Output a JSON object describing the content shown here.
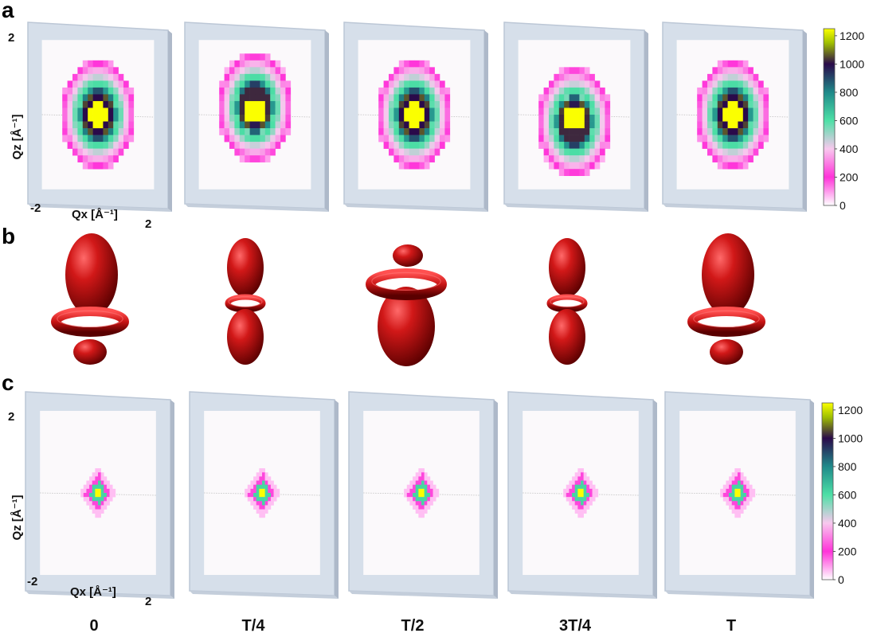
{
  "figure": {
    "panel_labels": [
      "a",
      "b",
      "c"
    ],
    "time_labels": [
      "0",
      "T/4",
      "T/2",
      "3T/4",
      "T"
    ],
    "colors": {
      "frame": "#d6dfea",
      "frame_edge": "#bcc7d6",
      "plot_bg": "#fbf9fb",
      "lobe": "#c81414",
      "lobe_dark": "#6e0000"
    }
  },
  "chart_data": [
    {
      "type": "heatmap",
      "panel": "a",
      "xlabel": "Qx  [Å⁻¹]",
      "ylabel": "Qz  [Å⁻¹]",
      "x_ticks": [
        "-2",
        "2"
      ],
      "y_ticks": [
        "2"
      ],
      "xlim": [
        -2,
        2
      ],
      "ylim": [
        -2,
        2
      ],
      "frames": [
        {
          "time": "0",
          "center_offset": [
            0,
            0
          ],
          "ring_radius": 0.7,
          "core": "yellow-center"
        },
        {
          "time": "T/4",
          "center_offset": [
            0,
            0.15
          ],
          "ring_radius": 0.75,
          "core": "yellow-lower-half"
        },
        {
          "time": "T/2",
          "center_offset": [
            0,
            0
          ],
          "ring_radius": 0.7,
          "core": "yellow-center"
        },
        {
          "time": "3T/4",
          "center_offset": [
            0,
            -0.15
          ],
          "ring_radius": 0.75,
          "core": "yellow-upper-half"
        },
        {
          "time": "T",
          "center_offset": [
            0,
            0
          ],
          "ring_radius": 0.7,
          "core": "yellow-center"
        }
      ],
      "colorbar": {
        "ticks": [
          "0",
          "200",
          "400",
          "600",
          "800",
          "1000",
          "1200"
        ],
        "range": [
          0,
          1250
        ],
        "colors": [
          "#ffffff",
          "#ff33d9",
          "#f7b8ef",
          "#4de0a6",
          "#1f8a8a",
          "#2a0a4a",
          "#fbff00"
        ]
      }
    },
    {
      "type": "other",
      "panel": "b",
      "description_shapes": [
        {
          "time": "0",
          "upper_lobe": "large",
          "ring": "lower",
          "lower_lobe": "small"
        },
        {
          "time": "T/4",
          "upper_lobe": "medium",
          "ring": "middle",
          "lower_lobe": "medium"
        },
        {
          "time": "T/2",
          "upper_lobe": "small",
          "ring": "upper",
          "lower_lobe": "large"
        },
        {
          "time": "3T/4",
          "upper_lobe": "medium",
          "ring": "middle",
          "lower_lobe": "medium"
        },
        {
          "time": "T",
          "upper_lobe": "large",
          "ring": "lower",
          "lower_lobe": "small"
        }
      ]
    },
    {
      "type": "heatmap",
      "panel": "c",
      "xlabel": "Qx  [Å⁻¹]",
      "ylabel": "Qz  [Å⁻¹]",
      "x_ticks": [
        "-2",
        "2"
      ],
      "y_ticks": [
        "2"
      ],
      "xlim": [
        -2,
        2
      ],
      "ylim": [
        -2,
        2
      ],
      "frames": [
        {
          "time": "0"
        },
        {
          "time": "T/4"
        },
        {
          "time": "T/2"
        },
        {
          "time": "3T/4"
        },
        {
          "time": "T"
        }
      ],
      "colorbar": {
        "ticks": [
          "0",
          "200",
          "400",
          "600",
          "800",
          "1000",
          "1200"
        ],
        "range": [
          0,
          1250
        ]
      }
    }
  ]
}
